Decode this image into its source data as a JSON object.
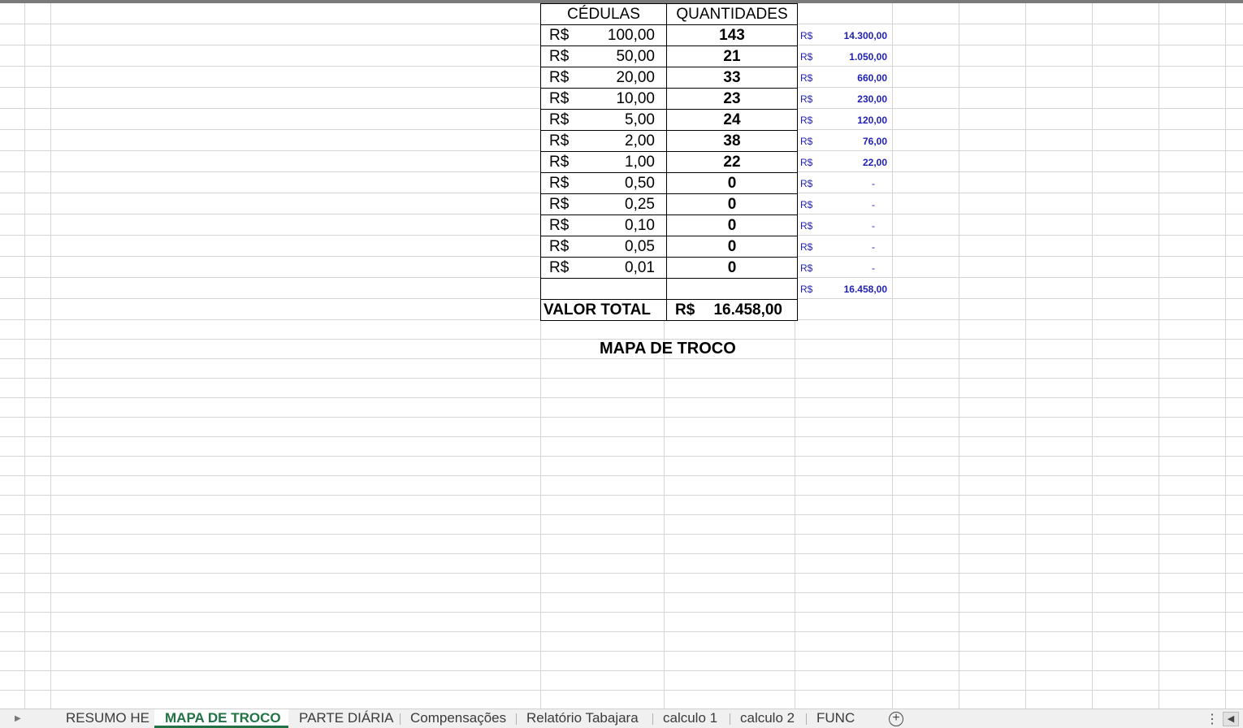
{
  "table": {
    "header": {
      "col1": "CÉDULAS",
      "col2": "QUANTIDADES"
    },
    "rows": [
      {
        "currency": "R$",
        "value": "100,00",
        "qty": "143"
      },
      {
        "currency": "R$",
        "value": "50,00",
        "qty": "21"
      },
      {
        "currency": "R$",
        "value": "20,00",
        "qty": "33"
      },
      {
        "currency": "R$",
        "value": "10,00",
        "qty": "23"
      },
      {
        "currency": "R$",
        "value": "5,00",
        "qty": "24"
      },
      {
        "currency": "R$",
        "value": "2,00",
        "qty": "38"
      },
      {
        "currency": "R$",
        "value": "1,00",
        "qty": "22"
      },
      {
        "currency": "R$",
        "value": "0,50",
        "qty": "0"
      },
      {
        "currency": "R$",
        "value": "0,25",
        "qty": "0"
      },
      {
        "currency": "R$",
        "value": "0,10",
        "qty": "0"
      },
      {
        "currency": "R$",
        "value": "0,05",
        "qty": "0"
      },
      {
        "currency": "R$",
        "value": "0,01",
        "qty": "0"
      }
    ],
    "total": {
      "label": "VALOR TOTAL",
      "currency": "R$",
      "value": "16.458,00"
    }
  },
  "side_values": [
    {
      "currency": "R$",
      "value": "14.300,00"
    },
    {
      "currency": "R$",
      "value": "1.050,00"
    },
    {
      "currency": "R$",
      "value": "660,00"
    },
    {
      "currency": "R$",
      "value": "230,00"
    },
    {
      "currency": "R$",
      "value": "120,00"
    },
    {
      "currency": "R$",
      "value": "76,00"
    },
    {
      "currency": "R$",
      "value": "22,00"
    },
    {
      "currency": "R$",
      "value": "-"
    },
    {
      "currency": "R$",
      "value": "-"
    },
    {
      "currency": "R$",
      "value": "-"
    },
    {
      "currency": "R$",
      "value": "-"
    },
    {
      "currency": "R$",
      "value": "-"
    },
    {
      "currency": "R$",
      "value": "16.458,00"
    }
  ],
  "map_title": "MAPA DE TROCO",
  "sheet_tabs": [
    {
      "label": "RESUMO HE",
      "active": false
    },
    {
      "label": "MAPA DE TROCO",
      "active": true
    },
    {
      "label": "PARTE DIÁRIA",
      "active": false
    },
    {
      "label": "Compensações",
      "active": false
    },
    {
      "label": "Relatório Tabajara",
      "active": false
    },
    {
      "label": "calculo 1",
      "active": false
    },
    {
      "label": "calculo 2",
      "active": false
    },
    {
      "label": "FUNC",
      "active": false
    }
  ],
  "icons": {
    "nav": "chevron-right-icon",
    "add_sheet": "plus-circle-icon",
    "more": "more-vertical-icon",
    "scroll": "scroll-left-icon"
  },
  "colors": {
    "accent": "#217346",
    "side_text": "#1f1fb5"
  }
}
